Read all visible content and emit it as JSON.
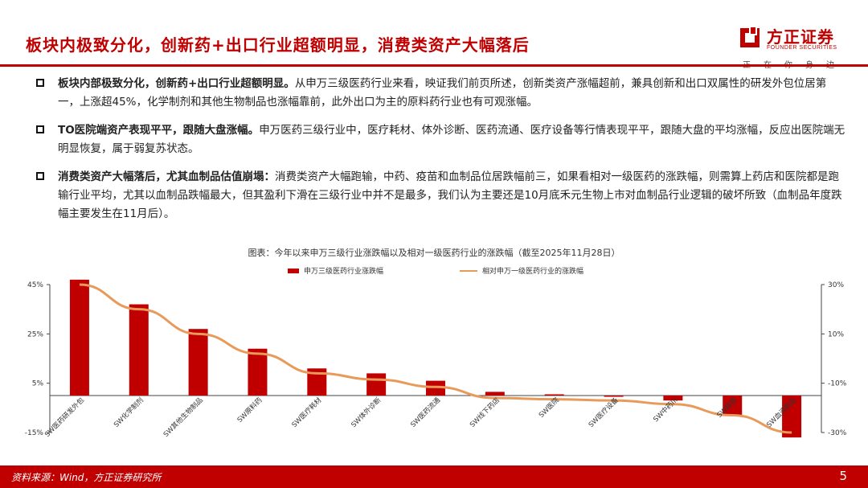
{
  "header": {
    "title": "板块内极致分化，创新药+出口行业超额明显，消费类资产大幅落后",
    "logo_cn": "方正证券",
    "logo_en": "FOUNDER SECURITIES",
    "slogan": "正在你身边"
  },
  "bullets": [
    {
      "bold": "板块内部极致分化，创新药+出口行业超额明显。",
      "text": "从申万三级医药行业来看，映证我们前页所述，创新类资产涨幅超前，兼具创新和出口双属性的研发外包位居第一，上涨超45%，化学制剂和其他生物制品也涨幅靠前，此外出口为主的原料药行业也有可观涨幅。"
    },
    {
      "bold": "TO医院端资产表现平平，跟随大盘涨幅。",
      "text": "申万医药三级行业中，医疗耗材、体外诊断、医药流通、医疗设备等行情表现平平，跟随大盘的平均涨幅，反应出医院端无明显恢复，属于弱复苏状态。"
    },
    {
      "bold": "消费类资产大幅落后，尤其血制品估值崩塌：",
      "text": "消费类资产大幅跑输，中药、疫苗和血制品位居跌幅前三，如果看相对一级医药的涨跌幅，则需算上药店和医院都是跑输行业平均，尤其以血制品跌幅最大，但其盈利下滑在三级行业中并不是最多，我们认为主要还是10月底禾元生物上市对血制品行业逻辑的破坏所致（血制品年度跌幅主要发生在11月后）。"
    }
  ],
  "figure": {
    "title": "图表：今年以来申万三级行业涨跌幅以及相对一级医药行业的涨跌幅（截至2025年11月28日）"
  },
  "chart_data": {
    "type": "bar",
    "categories": [
      "SW医药研发外包",
      "SW化学制剂",
      "SW其他生物制品",
      "SW原料药",
      "SW医疗耗材",
      "SW体外诊断",
      "SW医药流通",
      "SW线下药店",
      "SW医院",
      "SW医疗设备",
      "SW中药III",
      "SW疫苗",
      "SW血液制品"
    ],
    "series": [
      {
        "name": "申万三级医药行业涨跌幅",
        "axis": "left",
        "values": [
          47,
          37,
          27,
          19,
          11,
          9,
          6,
          1.5,
          0.5,
          -0.5,
          -2,
          -8,
          -17
        ]
      },
      {
        "name": "相对申万一级医药行业的涨跌幅",
        "axis": "right",
        "values": [
          30,
          20,
          10,
          2,
          -6,
          -8.5,
          -11.5,
          -16,
          -16.5,
          -17,
          -18.5,
          -23,
          -30
        ]
      }
    ],
    "left_axis": {
      "ticks": [
        "45%",
        "25%",
        "5%",
        "-15%"
      ],
      "values": [
        45,
        25,
        5,
        -15
      ],
      "ylim": [
        -15,
        45
      ]
    },
    "right_axis": {
      "ticks": [
        "30%",
        "10%",
        "-10%",
        "-30%"
      ],
      "values": [
        30,
        10,
        -10,
        -30
      ],
      "ylim": [
        -30,
        30
      ]
    },
    "colors": {
      "bar": "#c00000",
      "line": "#e89a5a"
    }
  },
  "footer": {
    "source": "资料来源：Wind，方正证券研究所",
    "page": "5"
  }
}
